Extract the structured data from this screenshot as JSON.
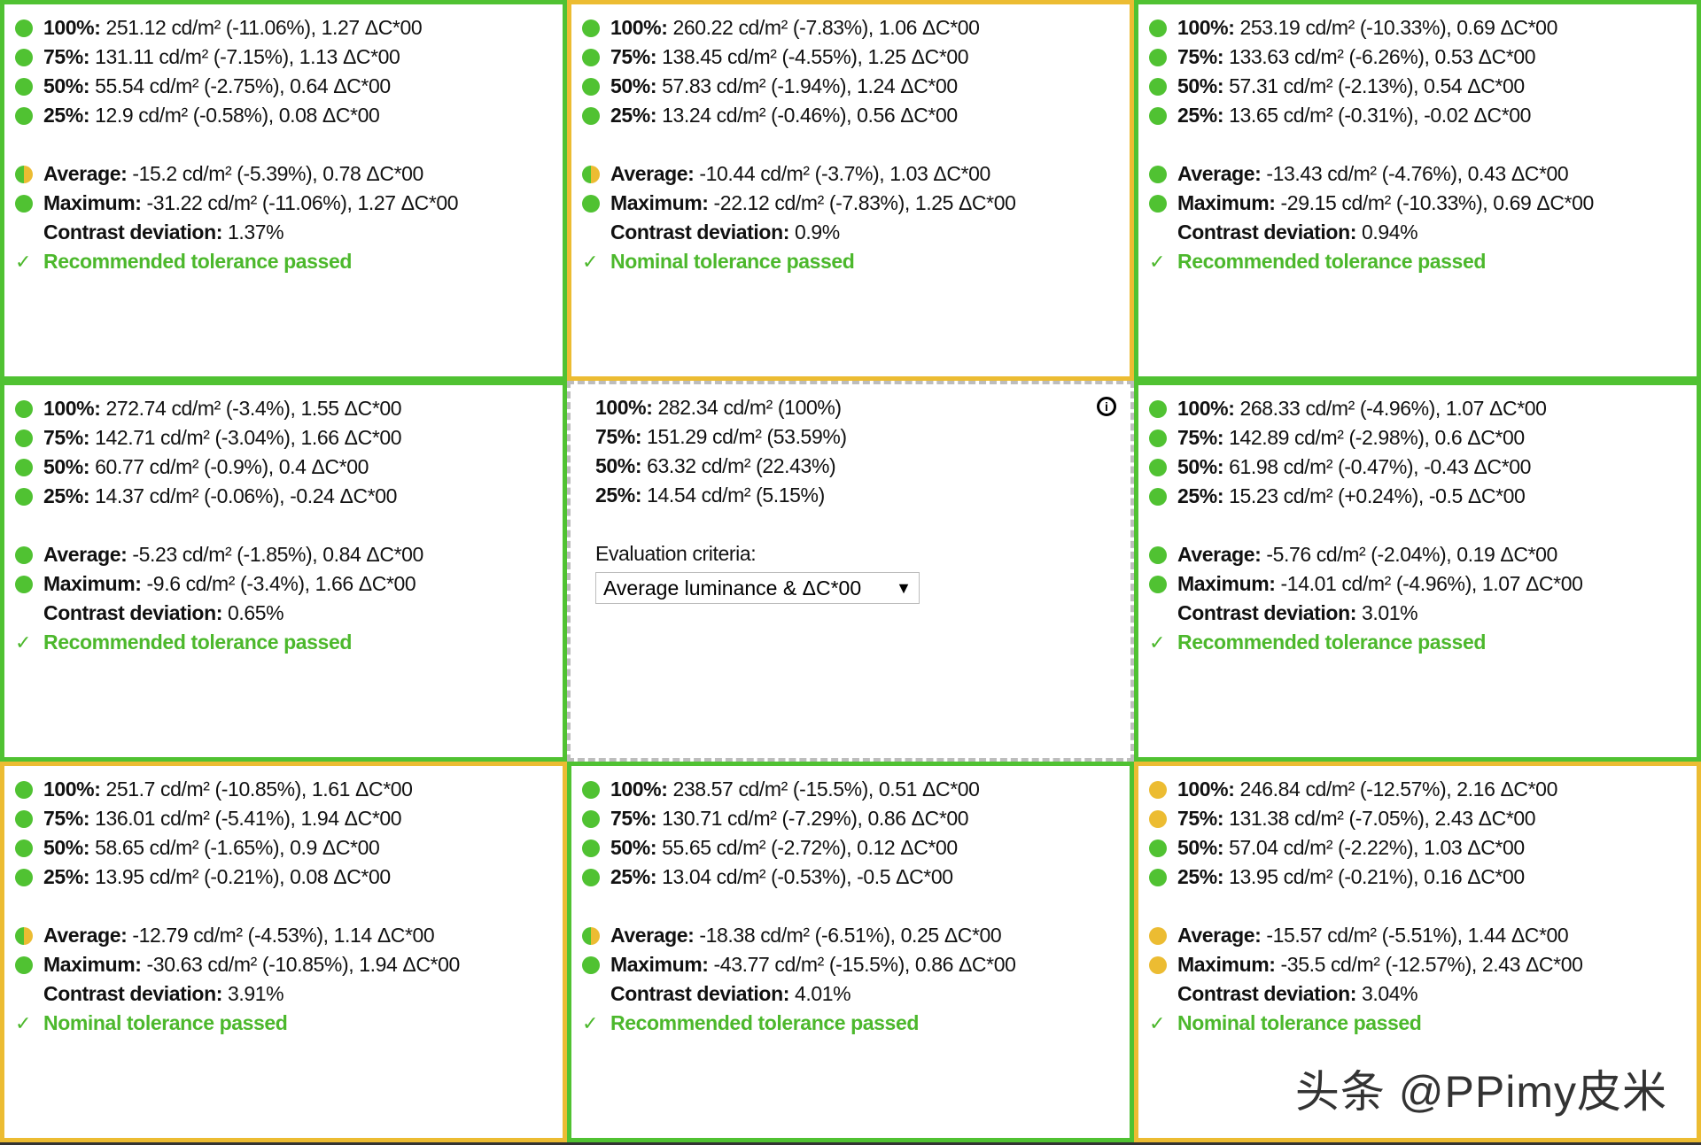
{
  "colors": {
    "green": "#50c232",
    "yellow": "#ecbc32",
    "pass_text": "#4cb82c"
  },
  "labels": {
    "p100": "100%:",
    "p75": "75%:",
    "p50": "50%:",
    "p25": "25%:",
    "average": "Average:",
    "maximum": "Maximum:",
    "contrast": "Contrast deviation:"
  },
  "reference": {
    "rows": [
      {
        "label": "100%:",
        "value": "282.34 cd/m² (100%)"
      },
      {
        "label": "75%:",
        "value": "151.29 cd/m² (53.59%)"
      },
      {
        "label": "50%:",
        "value": "63.32 cd/m² (22.43%)"
      },
      {
        "label": "25%:",
        "value": "14.54 cd/m² (5.15%)"
      }
    ],
    "criteria_label": "Evaluation criteria:",
    "criteria_value": "Average luminance & ΔC*00",
    "info_icon": "info-icon"
  },
  "cells": [
    {
      "border": "green",
      "rows": [
        [
          "green",
          "251.12 cd/m² (-11.06%), 1.27 ΔC*00"
        ],
        [
          "green",
          "131.11 cd/m² (-7.15%), 1.13 ΔC*00"
        ],
        [
          "green",
          "55.54 cd/m² (-2.75%), 0.64 ΔC*00"
        ],
        [
          "green",
          "12.9 cd/m² (-0.58%), 0.08 ΔC*00"
        ]
      ],
      "average": [
        "half",
        "-15.2 cd/m² (-5.39%), 0.78 ΔC*00"
      ],
      "maximum": [
        "green",
        "-31.22 cd/m² (-11.06%), 1.27 ΔC*00"
      ],
      "contrast": "1.37%",
      "result": "Recommended tolerance passed"
    },
    {
      "border": "yellow",
      "rows": [
        [
          "green",
          "260.22 cd/m² (-7.83%), 1.06 ΔC*00"
        ],
        [
          "green",
          "138.45 cd/m² (-4.55%), 1.25 ΔC*00"
        ],
        [
          "green",
          "57.83 cd/m² (-1.94%), 1.24 ΔC*00"
        ],
        [
          "green",
          "13.24 cd/m² (-0.46%), 0.56 ΔC*00"
        ]
      ],
      "average": [
        "half",
        "-10.44 cd/m² (-3.7%), 1.03 ΔC*00"
      ],
      "maximum": [
        "green",
        "-22.12 cd/m² (-7.83%), 1.25 ΔC*00"
      ],
      "contrast": "0.9%",
      "result": "Nominal tolerance passed"
    },
    {
      "border": "green",
      "rows": [
        [
          "green",
          "253.19 cd/m² (-10.33%), 0.69 ΔC*00"
        ],
        [
          "green",
          "133.63 cd/m² (-6.26%), 0.53 ΔC*00"
        ],
        [
          "green",
          "57.31 cd/m² (-2.13%), 0.54 ΔC*00"
        ],
        [
          "green",
          "13.65 cd/m² (-0.31%), -0.02 ΔC*00"
        ]
      ],
      "average": [
        "green",
        "-13.43 cd/m² (-4.76%), 0.43 ΔC*00"
      ],
      "maximum": [
        "green",
        "-29.15 cd/m² (-10.33%), 0.69 ΔC*00"
      ],
      "contrast": "0.94%",
      "result": "Recommended tolerance passed"
    },
    {
      "border": "green",
      "rows": [
        [
          "green",
          "272.74 cd/m² (-3.4%), 1.55 ΔC*00"
        ],
        [
          "green",
          "142.71 cd/m² (-3.04%), 1.66 ΔC*00"
        ],
        [
          "green",
          "60.77 cd/m² (-0.9%), 0.4 ΔC*00"
        ],
        [
          "green",
          "14.37 cd/m² (-0.06%), -0.24 ΔC*00"
        ]
      ],
      "average": [
        "green",
        "-5.23 cd/m² (-1.85%), 0.84 ΔC*00"
      ],
      "maximum": [
        "green",
        "-9.6 cd/m² (-3.4%), 1.66 ΔC*00"
      ],
      "contrast": "0.65%",
      "result": "Recommended tolerance passed"
    },
    {
      "reference": true
    },
    {
      "border": "green",
      "rows": [
        [
          "green",
          "268.33 cd/m² (-4.96%), 1.07 ΔC*00"
        ],
        [
          "green",
          "142.89 cd/m² (-2.98%), 0.6 ΔC*00"
        ],
        [
          "green",
          "61.98 cd/m² (-0.47%), -0.43 ΔC*00"
        ],
        [
          "green",
          "15.23 cd/m² (+0.24%), -0.5 ΔC*00"
        ]
      ],
      "average": [
        "green",
        "-5.76 cd/m² (-2.04%), 0.19 ΔC*00"
      ],
      "maximum": [
        "green",
        "-14.01 cd/m² (-4.96%), 1.07 ΔC*00"
      ],
      "contrast": "3.01%",
      "result": "Recommended tolerance passed"
    },
    {
      "border": "yellow",
      "rows": [
        [
          "green",
          "251.7 cd/m² (-10.85%), 1.61 ΔC*00"
        ],
        [
          "green",
          "136.01 cd/m² (-5.41%), 1.94 ΔC*00"
        ],
        [
          "green",
          "58.65 cd/m² (-1.65%), 0.9 ΔC*00"
        ],
        [
          "green",
          "13.95 cd/m² (-0.21%), 0.08 ΔC*00"
        ]
      ],
      "average": [
        "half",
        "-12.79 cd/m² (-4.53%), 1.14 ΔC*00"
      ],
      "maximum": [
        "green",
        "-30.63 cd/m² (-10.85%), 1.94 ΔC*00"
      ],
      "contrast": "3.91%",
      "result": "Nominal tolerance passed"
    },
    {
      "border": "green",
      "rows": [
        [
          "green",
          "238.57 cd/m² (-15.5%), 0.51 ΔC*00"
        ],
        [
          "green",
          "130.71 cd/m² (-7.29%), 0.86 ΔC*00"
        ],
        [
          "green",
          "55.65 cd/m² (-2.72%), 0.12 ΔC*00"
        ],
        [
          "green",
          "13.04 cd/m² (-0.53%), -0.5 ΔC*00"
        ]
      ],
      "average": [
        "half",
        "-18.38 cd/m² (-6.51%), 0.25 ΔC*00"
      ],
      "maximum": [
        "green",
        "-43.77 cd/m² (-15.5%), 0.86 ΔC*00"
      ],
      "contrast": "4.01%",
      "result": "Recommended tolerance passed"
    },
    {
      "border": "yellow",
      "rows": [
        [
          "yellow",
          "246.84 cd/m² (-12.57%), 2.16 ΔC*00"
        ],
        [
          "yellow",
          "131.38 cd/m² (-7.05%), 2.43 ΔC*00"
        ],
        [
          "green",
          "57.04 cd/m² (-2.22%), 1.03 ΔC*00"
        ],
        [
          "green",
          "13.95 cd/m² (-0.21%), 0.16 ΔC*00"
        ]
      ],
      "average": [
        "yellow",
        "-15.57 cd/m² (-5.51%), 1.44 ΔC*00"
      ],
      "maximum": [
        "yellow",
        "-35.5 cd/m² (-12.57%), 2.43 ΔC*00"
      ],
      "contrast": "3.04%",
      "result": "Nominal tolerance passed"
    }
  ],
  "watermark": "头条 @PPimy皮米"
}
